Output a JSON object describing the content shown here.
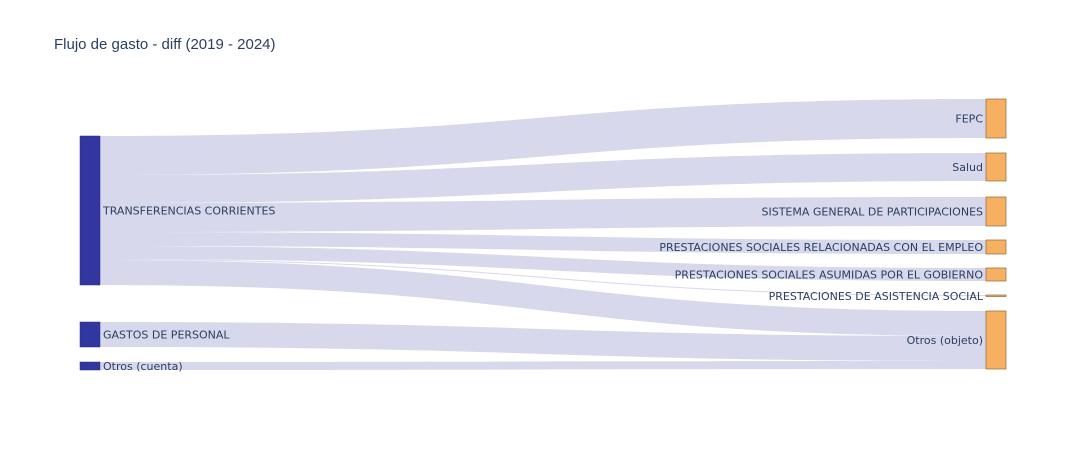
{
  "chart_data": {
    "type": "sankey",
    "title": "Flujo de gasto - diff (2019 - 2024)",
    "colors": {
      "source_node": "#3136a0",
      "target_node": "#f7b062",
      "target_stroke": "#8a6a3a",
      "link": "#d8d8ec"
    },
    "sources": [
      {
        "id": "tc",
        "label": "TRANSFERENCIAS CORRIENTES"
      },
      {
        "id": "gp",
        "label": "GASTOS DE PERSONAL"
      },
      {
        "id": "oc",
        "label": "Otros (cuenta)"
      }
    ],
    "targets": [
      {
        "id": "fepc",
        "label": "FEPC"
      },
      {
        "id": "salud",
        "label": "Salud"
      },
      {
        "id": "sgp",
        "label": "SISTEMA GENERAL DE PARTICIPACIONES"
      },
      {
        "id": "empleo",
        "label": "PRESTACIONES SOCIALES RELACIONADAS CON EL EMPLEO"
      },
      {
        "id": "gobierno",
        "label": "PRESTACIONES SOCIALES ASUMIDAS POR EL GOBIERNO"
      },
      {
        "id": "asistencia",
        "label": "PRESTACIONES DE ASISTENCIA SOCIAL"
      },
      {
        "id": "otros",
        "label": "Otros (objeto)"
      }
    ],
    "links": [
      {
        "source": "tc",
        "target": "fepc",
        "value": 39
      },
      {
        "source": "tc",
        "target": "salud",
        "value": 28
      },
      {
        "source": "tc",
        "target": "sgp",
        "value": 29
      },
      {
        "source": "tc",
        "target": "empleo",
        "value": 14
      },
      {
        "source": "tc",
        "target": "gobierno",
        "value": 13
      },
      {
        "source": "tc",
        "target": "asistencia",
        "value": 1
      },
      {
        "source": "tc",
        "target": "otros",
        "value": 25
      },
      {
        "source": "gp",
        "target": "otros",
        "value": 25
      },
      {
        "source": "oc",
        "target": "otros",
        "value": 8
      }
    ]
  }
}
